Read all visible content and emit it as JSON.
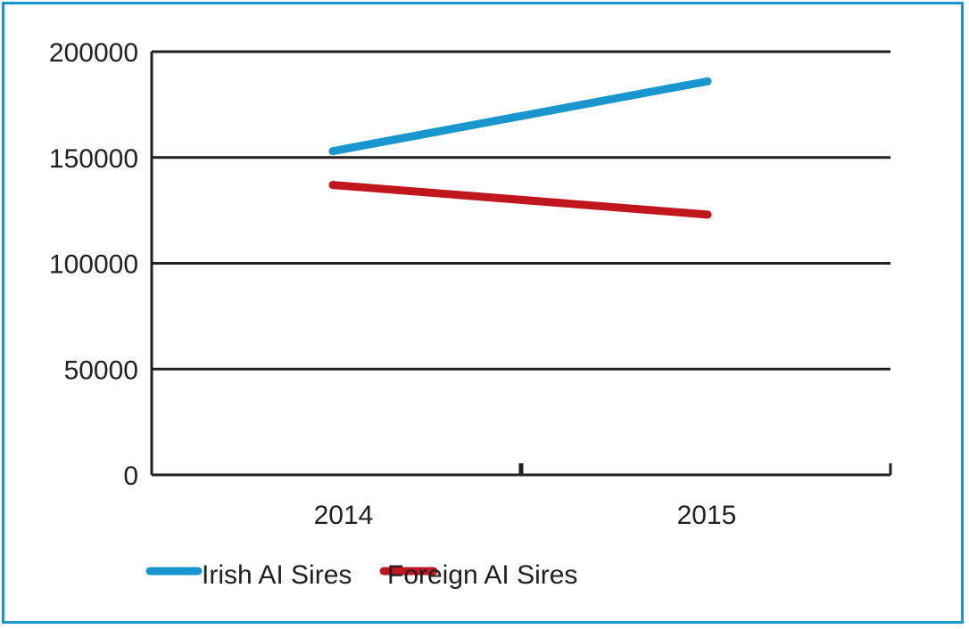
{
  "chart_data": {
    "type": "line",
    "title": "",
    "xlabel": "",
    "ylabel": "",
    "categories": [
      "2014",
      "2015"
    ],
    "ylim": [
      0,
      200000
    ],
    "yticks": [
      0,
      50000,
      100000,
      150000,
      200000
    ],
    "ytick_labels": [
      "0",
      "50000",
      "100000",
      "150000",
      "200000"
    ],
    "grid": "horizontal",
    "legend_position": "bottom-left",
    "series": [
      {
        "name": "Irish AI Sires",
        "values": [
          153000,
          186000
        ],
        "color": "#1a96cf"
      },
      {
        "name": "Foreign AI Sires",
        "values": [
          137000,
          123000
        ],
        "color": "#c0161e"
      }
    ]
  }
}
